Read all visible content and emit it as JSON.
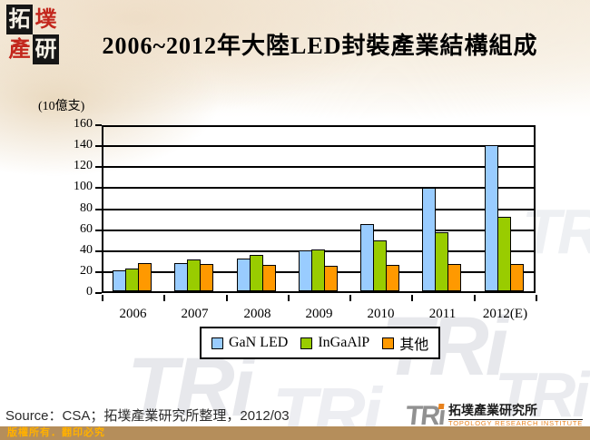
{
  "header": {
    "logo_chars": [
      "拓",
      "墣",
      "產",
      "研"
    ],
    "title": "2006~2012年大陸LED封裝產業結構組成"
  },
  "chart_data": {
    "type": "bar",
    "title": "2006~2012年大陸LED封裝產業結構組成",
    "unit_label": "(10億支)",
    "categories": [
      "2006",
      "2007",
      "2008",
      "2009",
      "2010",
      "2011",
      "2012(E)"
    ],
    "series": [
      {
        "name": "GaN LED",
        "color": "#99CCFF",
        "values": [
          20,
          27,
          31,
          39,
          64,
          99,
          139
        ]
      },
      {
        "name": "InGaAlP",
        "color": "#99CC00",
        "values": [
          22,
          30,
          35,
          40,
          48,
          56,
          71
        ]
      },
      {
        "name": "其他",
        "color": "#FF9900",
        "values": [
          27,
          26,
          25,
          24,
          25,
          26,
          26
        ]
      }
    ],
    "ylim": [
      0,
      160
    ],
    "ytick_step": 20,
    "grid": true,
    "legend_position": "bottom"
  },
  "watermark": "TRi",
  "footer": {
    "source": "Source：CSA；拓墣產業研究所整理，2012/03",
    "copyright": "版權所有．翻印必究",
    "logo_text": "TR",
    "logo_i": "ı",
    "logo_cjk": "拓墣產業研究所",
    "logo_en": "TOPOLOGY RESEARCH INSTITUTE"
  }
}
